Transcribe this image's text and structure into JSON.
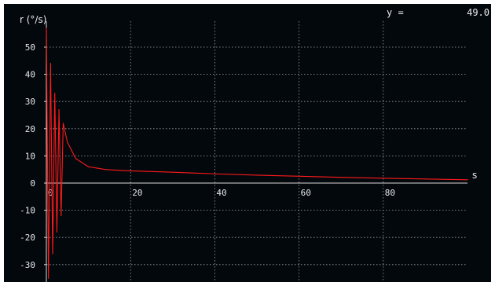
{
  "readout": {
    "label": "y =",
    "value": "49.0"
  },
  "chart_data": {
    "type": "line",
    "ylabel": "r (°/s)",
    "xlabel": "s",
    "xlim": [
      0,
      100
    ],
    "ylim": [
      -35,
      57
    ],
    "x_ticks": [
      0,
      20,
      40,
      60,
      80
    ],
    "y_ticks": [
      50,
      40,
      30,
      20,
      10,
      0,
      -10,
      -20,
      -30
    ],
    "x_tick_labels": [
      "0",
      "20",
      "40",
      "60",
      "80"
    ],
    "y_tick_labels": [
      "50",
      "40",
      "30",
      "20",
      "10",
      "0",
      "-10",
      "-20",
      "-30"
    ],
    "grid": true,
    "series": [
      {
        "color": "#ff1a1a",
        "description_of_shape": "damped oscillation decaying onto a slow exponential drift",
        "x": [
          0,
          0.5,
          1,
          1.5,
          2,
          2.5,
          3,
          3.5,
          4,
          5,
          6,
          7,
          8,
          10,
          12,
          14,
          16,
          18,
          20,
          30,
          40,
          50,
          60,
          70,
          80,
          90,
          100
        ],
        "y": [
          57,
          -35,
          44,
          -26,
          33,
          -18,
          27,
          -12,
          22,
          15,
          12,
          9,
          8,
          6,
          5.5,
          5,
          4.8,
          4.6,
          4.5,
          4.0,
          3.4,
          2.9,
          2.5,
          2.1,
          1.8,
          1.5,
          1.2
        ]
      }
    ]
  }
}
